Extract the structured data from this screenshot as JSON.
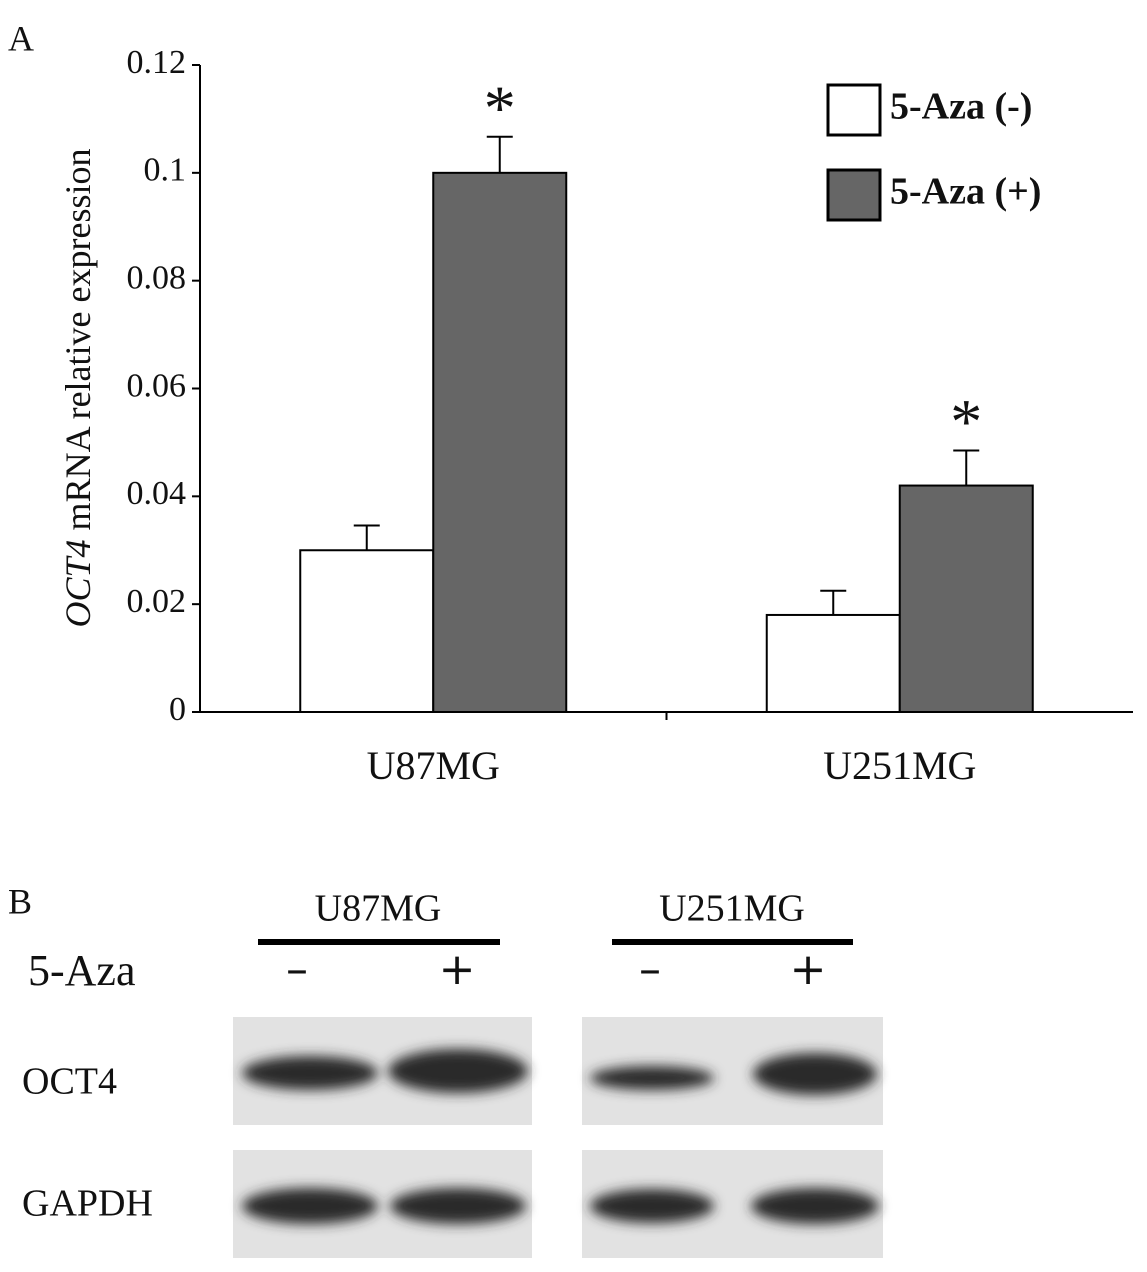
{
  "chart_data": {
    "type": "bar",
    "panel_label": "A",
    "y_label_gene": "OCT4",
    "y_label": "mRNA relative expression",
    "categories": [
      "U87MG",
      "U251MG"
    ],
    "series": [
      {
        "name": "5-Aza (-)",
        "color": "#ffffff",
        "values": [
          0.03,
          0.018
        ],
        "errors": [
          0.0046,
          0.0045
        ]
      },
      {
        "name": "5-Aza (+)",
        "color": "#666666",
        "values": [
          0.1,
          0.042
        ],
        "errors": [
          0.0067,
          0.0065
        ],
        "annotations": [
          "*",
          "*"
        ]
      }
    ],
    "ylim": [
      0,
      0.12
    ],
    "yticks": [
      0,
      0.02,
      0.04,
      0.06,
      0.08,
      0.1,
      0.12
    ],
    "grid": false
  },
  "blot": {
    "panel_label": "B",
    "treatment": "5-Aza",
    "groups": [
      {
        "name": "U87MG",
        "lanes": [
          "–",
          "+"
        ]
      },
      {
        "name": "U251MG",
        "lanes": [
          "–",
          "+"
        ]
      }
    ],
    "rows": [
      "OCT4",
      "GAPDH"
    ]
  }
}
